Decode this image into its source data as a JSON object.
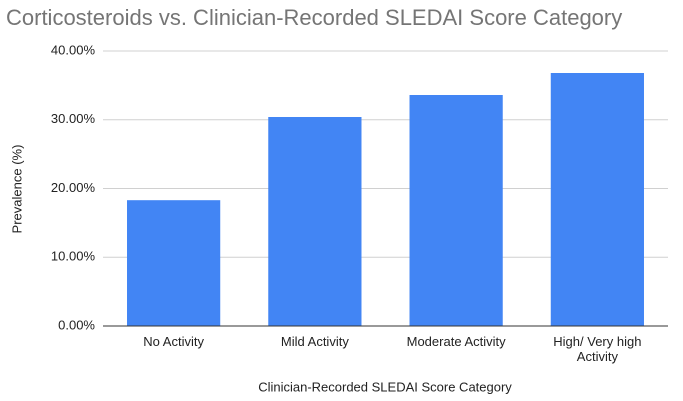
{
  "chart_data": {
    "type": "bar",
    "title": "Corticosteroids vs. Clinician-Recorded SLEDAI Score Category",
    "x_label": "Clinician-Recorded SLEDAI Score Category",
    "y_label": "Prevalence (%)",
    "categories": [
      "No Activity",
      "Mild Activity",
      "Moderate Activity",
      "High/ Very high Activity"
    ],
    "values": [
      18.3,
      30.4,
      33.6,
      36.8
    ],
    "color": "#4285f4",
    "ylim": [
      0,
      40
    ],
    "yticks": [
      {
        "value": 0,
        "label": "0.00%"
      },
      {
        "value": 10,
        "label": "10.00%"
      },
      {
        "value": 20,
        "label": "20.00%"
      },
      {
        "value": 30,
        "label": "30.00%"
      },
      {
        "value": 40,
        "label": "40.00%"
      }
    ],
    "grid": true
  }
}
